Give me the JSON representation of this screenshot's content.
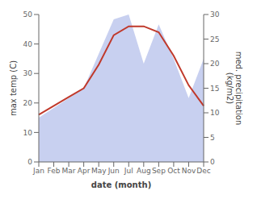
{
  "chart_data": {
    "type": "line",
    "xlabel": "date (month)",
    "ylabel": "max temp (C)",
    "y2label": "med. precipitation\n(kg/m2)",
    "categories": [
      "Jan",
      "Feb",
      "Mar",
      "Apr",
      "May",
      "Jun",
      "Jul",
      "Aug",
      "Sep",
      "Oct",
      "Nov",
      "Dec"
    ],
    "series": [
      {
        "type": "area",
        "axis": "y2",
        "color": "#c8d0f0",
        "values": [
          9,
          11,
          13,
          15,
          22,
          29,
          30,
          20,
          28,
          21,
          13,
          21
        ]
      },
      {
        "type": "line",
        "color": "#c0392b",
        "values": [
          16,
          19,
          22,
          25,
          33,
          43,
          46,
          46,
          44,
          36,
          26,
          19
        ]
      }
    ],
    "ylim": [
      0,
      50
    ],
    "yticks": [
      0,
      10,
      20,
      30,
      40,
      50
    ],
    "y2lim": [
      0,
      30
    ],
    "y2ticks": [
      0,
      5,
      10,
      15,
      20,
      25,
      30
    ],
    "grid": false
  }
}
